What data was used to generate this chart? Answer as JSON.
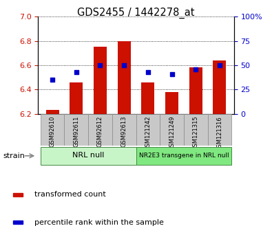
{
  "title": "GDS2455 / 1442278_at",
  "samples": [
    "GSM92610",
    "GSM92611",
    "GSM92612",
    "GSM92613",
    "GSM121242",
    "GSM121249",
    "GSM121315",
    "GSM121316"
  ],
  "transformed_count": [
    6.23,
    6.46,
    6.75,
    6.8,
    6.46,
    6.38,
    6.58,
    6.64
  ],
  "percentile_rank": [
    35,
    43,
    50,
    50,
    43,
    41,
    46,
    50
  ],
  "bar_bottom": 6.2,
  "ylim_left": [
    6.2,
    7.0
  ],
  "ylim_right": [
    0,
    100
  ],
  "yticks_left": [
    6.2,
    6.4,
    6.6,
    6.8,
    7.0
  ],
  "yticks_right": [
    0,
    25,
    50,
    75,
    100
  ],
  "bar_color": "#cc1100",
  "dot_color": "#0000cc",
  "group1_label": "NRL null",
  "group2_label": "NR2E3 transgene in NRL null",
  "group1_indices": [
    0,
    1,
    2,
    3
  ],
  "group2_indices": [
    4,
    5,
    6,
    7
  ],
  "group1_color": "#c8f5c8",
  "group2_color": "#80e880",
  "strain_label": "strain",
  "legend_bar_label": "transformed count",
  "legend_dot_label": "percentile rank within the sample",
  "left_tick_color": "#cc1100",
  "right_tick_color": "#0000cc",
  "tick_label_bg": "#c8c8c8",
  "tick_label_border": "#888888",
  "fig_width": 3.95,
  "fig_height": 3.45,
  "dpi": 100
}
